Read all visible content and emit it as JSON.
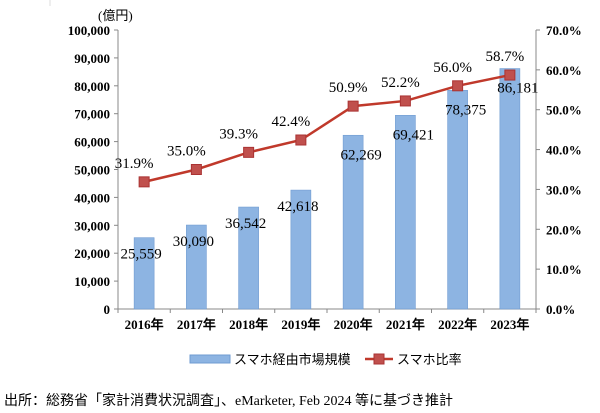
{
  "chart_data": {
    "type": "bar+line",
    "categories": [
      "2016年",
      "2017年",
      "2018年",
      "2019年",
      "2020年",
      "2021年",
      "2022年",
      "2023年"
    ],
    "series": [
      {
        "name": "スマホ経由市場規模",
        "type": "bar",
        "axis": "left",
        "color": "#8DB4E2",
        "values": [
          25559,
          30090,
          36542,
          42618,
          62269,
          69421,
          78375,
          86181
        ],
        "labels": [
          "25,559",
          "30,090",
          "36,542",
          "42,618",
          "62,269",
          "69,421",
          "78,375",
          "86,181"
        ]
      },
      {
        "name": "スマホ比率",
        "type": "line",
        "axis": "right",
        "color": "#C0392B",
        "values": [
          31.9,
          35.0,
          39.3,
          42.4,
          50.9,
          52.2,
          56.0,
          58.7
        ],
        "labels": [
          "31.9%",
          "35.0%",
          "39.3%",
          "42.4%",
          "50.9%",
          "52.2%",
          "56.0%",
          "58.7%"
        ]
      }
    ],
    "y_left": {
      "unit": "(億円)",
      "range": [
        0,
        100000
      ],
      "ticks": [
        "0",
        "10,000",
        "20,000",
        "30,000",
        "40,000",
        "50,000",
        "60,000",
        "70,000",
        "80,000",
        "90,000",
        "100,000"
      ]
    },
    "y_right": {
      "range": [
        0,
        70
      ],
      "ticks": [
        "0.0%",
        "10.0%",
        "20.0%",
        "30.0%",
        "40.0%",
        "50.0%",
        "60.0%",
        "70.0%"
      ]
    },
    "legend": "bottom",
    "grid": false
  },
  "source": "出所：総務省「家計消費状況調査」、eMarketer, Feb 2024 等に基づき推計"
}
